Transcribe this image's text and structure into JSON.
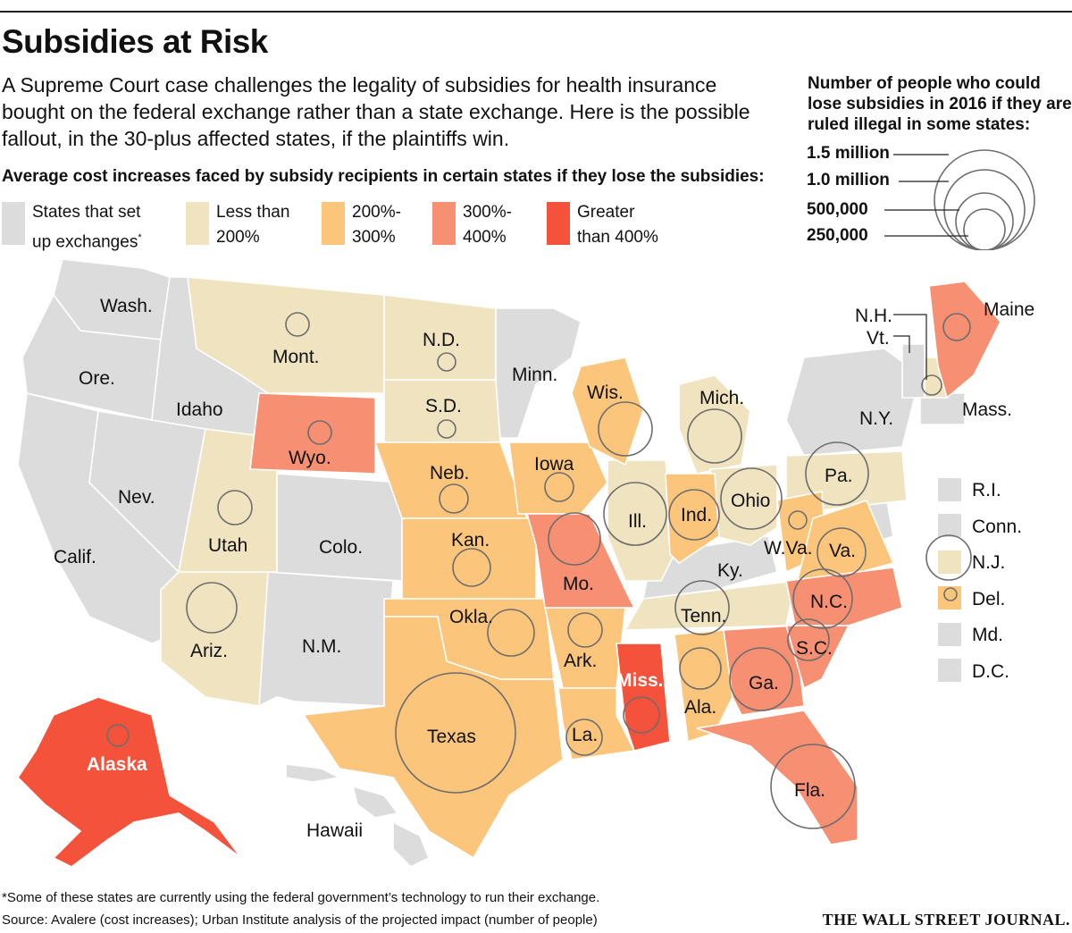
{
  "title": "Subsidies at Risk",
  "dek": "A Supreme Court case challenges the legality of subsidies for health insurance bought on the federal exchange rather than a state exchange. Here is the possible fallout, in the 30-plus affected states, if the plaintiffs win.",
  "subhead": "Average cost increases faced by subsidy recipients in certain states if they lose the subsidies:",
  "size_legend": {
    "title": "Number of people who could lose subsidies in 2016 if they are ruled illegal in some states:",
    "items": [
      "1.5 million",
      "1.0 million",
      "500,000",
      "250,000"
    ]
  },
  "color_legend": [
    {
      "label_1": "States that set",
      "label_2": "up exchanges",
      "mark": "*",
      "color": "#dcdcdc"
    },
    {
      "label_1": "Less than",
      "label_2": "200%",
      "color": "#efe3c0"
    },
    {
      "label_1": "200%-",
      "label_2": "300%",
      "color": "#fbc57c"
    },
    {
      "label_1": "300%-",
      "label_2": "400%",
      "color": "#f79072"
    },
    {
      "label_1": "Greater",
      "label_2": "than 400%",
      "color": "#f5523c"
    }
  ],
  "labels": {
    "wash": "Wash.",
    "ore": "Ore.",
    "calif": "Calif.",
    "idaho": "Idaho",
    "nev": "Nev.",
    "mont": "Mont.",
    "wyo": "Wyo.",
    "utah": "Utah",
    "colo": "Colo.",
    "ariz": "Ariz.",
    "nm": "N.M.",
    "nd": "N.D.",
    "sd": "S.D.",
    "neb": "Neb.",
    "kan": "Kan.",
    "okla": "Okla.",
    "texas": "Texas",
    "minn": "Minn.",
    "iowa": "Iowa",
    "mo": "Mo.",
    "ark": "Ark.",
    "la": "La.",
    "wis": "Wis.",
    "ill": "Ill.",
    "mich": "Mich.",
    "ind": "Ind.",
    "ohio": "Ohio",
    "ky": "Ky.",
    "tenn": "Tenn.",
    "miss": "Miss.",
    "ala": "Ala.",
    "ga": "Ga.",
    "fla": "Fla.",
    "sc": "S.C.",
    "nc": "N.C.",
    "va": "Va.",
    "wva": "W.Va.",
    "pa": "Pa.",
    "ny": "N.Y.",
    "nh": "N.H.",
    "vt": "Vt.",
    "maine": "Maine",
    "mass": "Mass.",
    "alaska": "Alaska",
    "hawaii": "Hawaii"
  },
  "small_states": [
    "R.I.",
    "Conn.",
    "N.J.",
    "Del.",
    "Md.",
    "D.C."
  ],
  "footnote": "*Some of these states are currently using the federal government’s technology to run their exchange.",
  "source": "Source: Avalere (cost increases); Urban Institute analysis of the projected impact (number of people)",
  "logo": "THE WALL STREET JOURNAL."
}
